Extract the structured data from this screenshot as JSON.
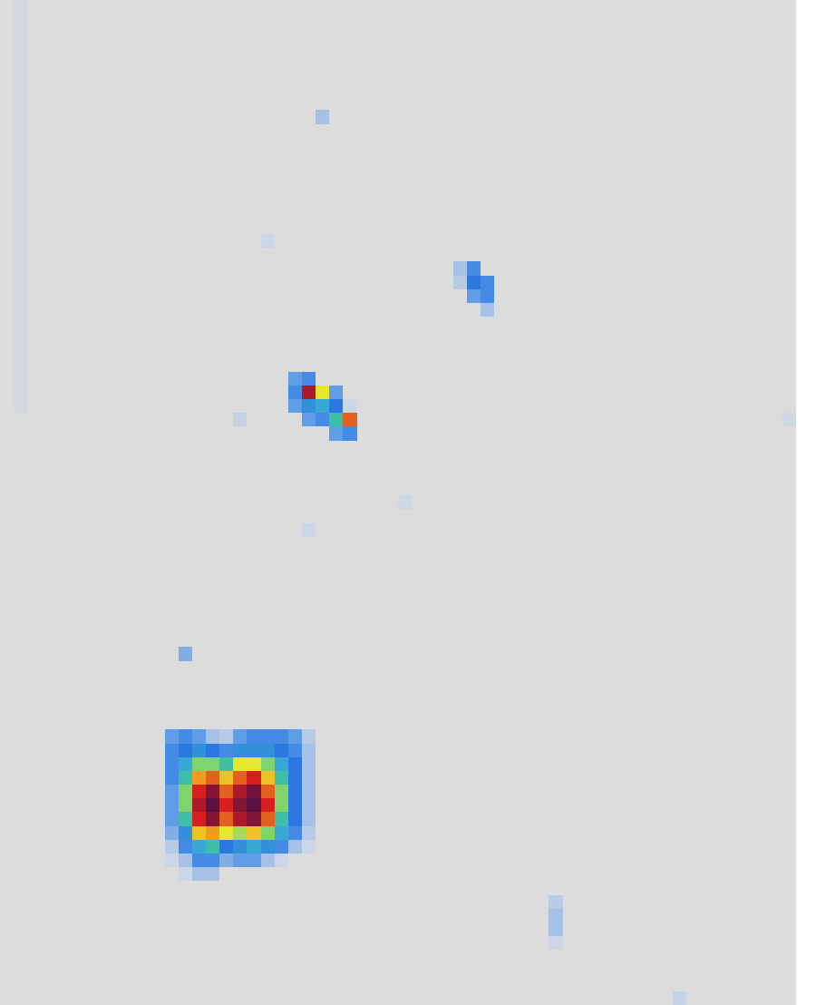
{
  "chart_data": {
    "type": "heatmap",
    "xlim": [
      0,
      58
    ],
    "ylim": [
      0,
      73
    ],
    "tick_labels": false,
    "grid": false,
    "color_range": [
      0,
      1
    ],
    "cell_blocks": [
      {
        "row": 53,
        "col": 12,
        "values": [
          [
            0.3,
            0.35,
            0.3,
            0.2,
            0.15,
            0.3,
            0.35,
            0.35,
            0.35,
            0.3,
            0.15
          ],
          [
            0.35,
            0.4,
            0.45,
            0.4,
            0.35,
            0.45,
            0.45,
            0.45,
            0.4,
            0.35,
            0.2
          ],
          [
            0.35,
            0.5,
            0.6,
            0.6,
            0.55,
            0.65,
            0.65,
            0.6,
            0.5,
            0.4,
            0.2
          ],
          [
            0.35,
            0.55,
            0.75,
            0.8,
            0.7,
            0.8,
            0.85,
            0.7,
            0.55,
            0.4,
            0.2
          ],
          [
            0.3,
            0.6,
            0.85,
            0.95,
            0.8,
            0.9,
            0.97,
            0.8,
            0.6,
            0.4,
            0.2
          ],
          [
            0.3,
            0.6,
            0.9,
            1.0,
            0.85,
            0.95,
            1.0,
            0.85,
            0.6,
            0.4,
            0.2
          ],
          [
            0.3,
            0.55,
            0.85,
            0.95,
            0.8,
            0.9,
            0.95,
            0.8,
            0.55,
            0.4,
            0.2
          ],
          [
            0.25,
            0.45,
            0.7,
            0.75,
            0.65,
            0.62,
            0.7,
            0.6,
            0.5,
            0.35,
            0.15
          ],
          [
            0.15,
            0.35,
            0.5,
            0.55,
            0.4,
            0.45,
            0.5,
            0.45,
            0.35,
            0.2,
            0.1
          ],
          [
            0.1,
            0.2,
            0.35,
            0.35,
            0.25,
            0.3,
            0.3,
            0.2,
            0.1,
            0,
            0
          ],
          [
            0,
            0.1,
            0.2,
            0.2,
            0,
            0,
            0,
            0,
            0,
            0,
            0
          ]
        ]
      },
      {
        "row": 27,
        "col": 21,
        "values": [
          [
            0.3,
            0.35,
            0,
            0,
            0
          ],
          [
            0.35,
            0.9,
            0.65,
            0.3,
            0
          ],
          [
            0.3,
            0.45,
            0.5,
            0.4,
            0.1
          ],
          [
            0,
            0.3,
            0.35,
            0.55,
            0.8
          ],
          [
            0,
            0,
            0,
            0.3,
            0.35
          ]
        ]
      },
      {
        "row": 19,
        "col": 33,
        "values": [
          [
            0.2,
            0.35,
            0
          ],
          [
            0.15,
            0.4,
            0.35
          ],
          [
            0,
            0.3,
            0.35
          ],
          [
            0,
            0,
            0.2
          ]
        ]
      },
      {
        "row": 8,
        "col": 23,
        "values": [
          [
            0.2
          ]
        ]
      },
      {
        "row": 17,
        "col": 19,
        "values": [
          [
            0.1
          ]
        ]
      },
      {
        "row": 30,
        "col": 17,
        "values": [
          [
            0.12
          ]
        ]
      },
      {
        "row": 47,
        "col": 13,
        "values": [
          [
            0.25
          ]
        ]
      },
      {
        "row": 38,
        "col": 22,
        "values": [
          [
            0.1
          ]
        ]
      },
      {
        "row": 36,
        "col": 29,
        "values": [
          [
            0.08
          ]
        ]
      },
      {
        "row": 65,
        "col": 40,
        "values": [
          [
            0.15
          ],
          [
            0.2
          ],
          [
            0.2
          ],
          [
            0.1
          ]
        ]
      },
      {
        "row": 72,
        "col": 49,
        "values": [
          [
            0.12
          ]
        ]
      },
      {
        "row": 30,
        "col": 57,
        "values": [
          [
            0.08
          ]
        ]
      },
      {
        "row": 0,
        "col": 1,
        "values": [
          [
            0.06
          ],
          [
            0.06
          ],
          [
            0.06
          ],
          [
            0.06
          ],
          [
            0.06
          ],
          [
            0.06
          ],
          [
            0.06
          ],
          [
            0.06
          ],
          [
            0.06
          ],
          [
            0.06
          ],
          [
            0.06
          ],
          [
            0.06
          ],
          [
            0.06
          ],
          [
            0.06
          ],
          [
            0.06
          ],
          [
            0.06
          ],
          [
            0.06
          ],
          [
            0.06
          ],
          [
            0.06
          ],
          [
            0.06
          ],
          [
            0.06
          ],
          [
            0.06
          ],
          [
            0.06
          ],
          [
            0.06
          ],
          [
            0.06
          ],
          [
            0.06
          ],
          [
            0.06
          ],
          [
            0.06
          ],
          [
            0.06
          ],
          [
            0.06
          ]
        ]
      }
    ]
  }
}
